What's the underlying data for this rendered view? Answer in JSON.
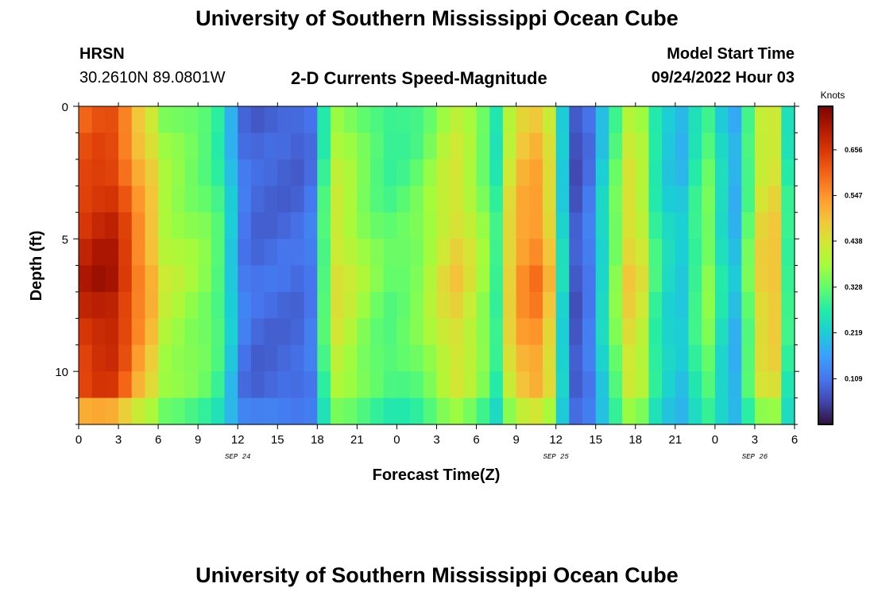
{
  "header": {
    "title": "University of Southern Mississippi Ocean Cube",
    "station": "HRSN",
    "coords": "30.2610N  89.0801W",
    "subtitle": "2-D Currents Speed-Magnitude",
    "model_label": "Model Start Time",
    "model_time": "09/24/2022 Hour 03"
  },
  "footer": {
    "title": "University of Southern Mississippi Ocean Cube"
  },
  "chart_data": {
    "type": "heatmap",
    "title": "2-D Currents Speed-Magnitude",
    "xlabel": "Forecast Time(Z)",
    "ylabel": "Depth (ft)",
    "x_tick_labels": [
      "0",
      "3",
      "6",
      "9",
      "12",
      "15",
      "18",
      "21",
      "0",
      "3",
      "6",
      "9",
      "12",
      "15",
      "18",
      "21",
      "0",
      "3",
      "6"
    ],
    "x_range_hours": [
      0,
      54
    ],
    "date_labels": [
      {
        "label": "SEP 24",
        "hour": 12
      },
      {
        "label": "SEP 25",
        "hour": 36
      },
      {
        "label": "SEP 26",
        "hour": 51
      }
    ],
    "y_ticks": [
      "0",
      "5",
      "10"
    ],
    "y_range_ft": [
      0,
      12
    ],
    "depth_bins": 12,
    "colorbar": {
      "label": "Knots",
      "ticks": [
        "0.656",
        "0.547",
        "0.438",
        "0.328",
        "0.219",
        "0.109"
      ],
      "range": [
        0,
        0.76
      ]
    },
    "speed_profile_knots": [
      0.7,
      0.72,
      0.72,
      0.66,
      0.58,
      0.52,
      0.42,
      0.4,
      0.38,
      0.36,
      0.32,
      0.22,
      0.12,
      0.1,
      0.1,
      0.1,
      0.1,
      0.12,
      0.32,
      0.45,
      0.42,
      0.38,
      0.35,
      0.33,
      0.34,
      0.36,
      0.4,
      0.45,
      0.48,
      0.44,
      0.38,
      0.3,
      0.48,
      0.56,
      0.58,
      0.5,
      0.24,
      0.08,
      0.12,
      0.24,
      0.36,
      0.48,
      0.44,
      0.3,
      0.24,
      0.22,
      0.3,
      0.36,
      0.26,
      0.2,
      0.34,
      0.48,
      0.5,
      0.3,
      0.16
    ]
  }
}
